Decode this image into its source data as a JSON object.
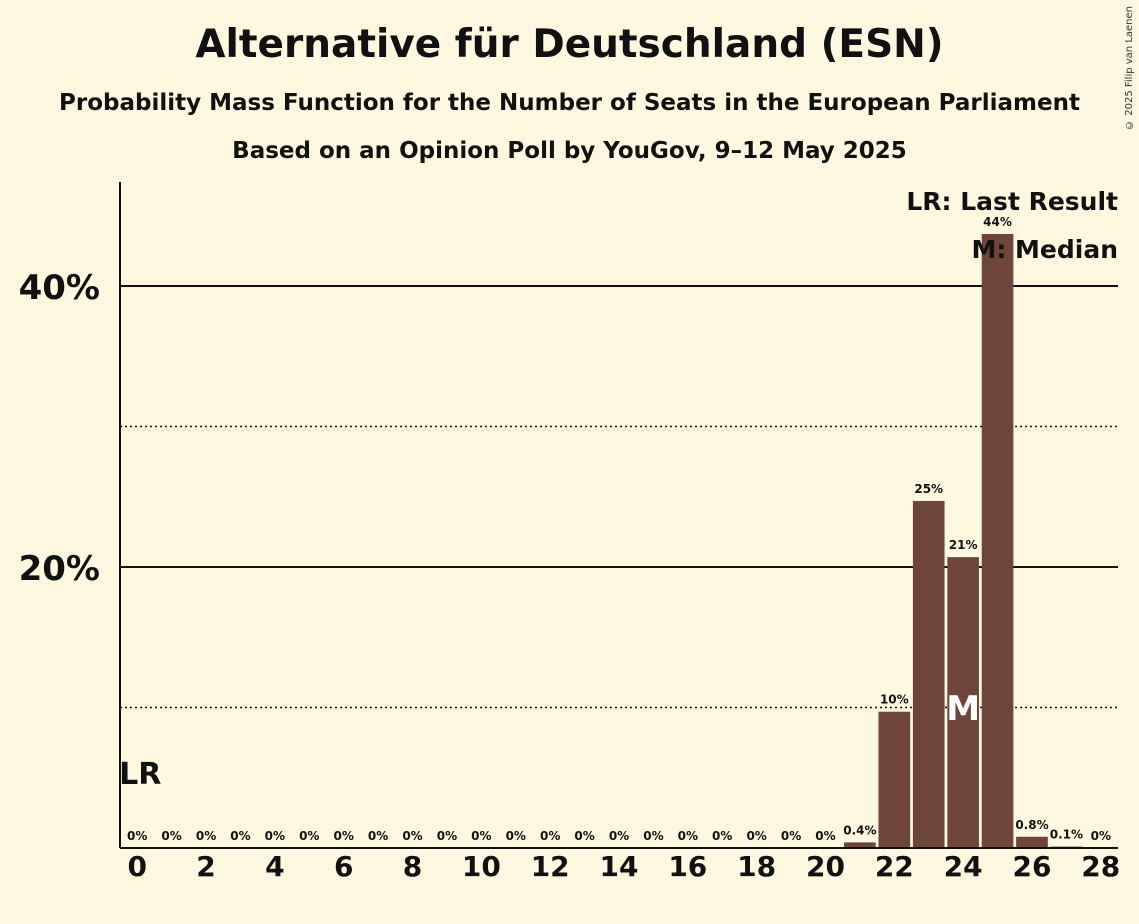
{
  "header": {
    "title": "Alternative für Deutschland (ESN)",
    "subtitle": "Probability Mass Function for the Number of Seats in the European Parliament",
    "subtitle2": "Based on an Opinion Poll by YouGov, 9–12 May 2025",
    "copyright": "© 2025 Filip van Laenen"
  },
  "chart_data": {
    "type": "bar",
    "x": [
      0,
      1,
      2,
      3,
      4,
      5,
      6,
      7,
      8,
      9,
      10,
      11,
      12,
      13,
      14,
      15,
      16,
      17,
      18,
      19,
      20,
      21,
      22,
      23,
      24,
      25,
      26,
      27,
      28
    ],
    "values": [
      0,
      0,
      0,
      0,
      0,
      0,
      0,
      0,
      0,
      0,
      0,
      0,
      0,
      0,
      0,
      0,
      0,
      0,
      0,
      0,
      0,
      0.4,
      9.7,
      24.7,
      20.7,
      43.7,
      0.8,
      0.1,
      0
    ],
    "data_labels": [
      "0%",
      "0%",
      "0%",
      "0%",
      "0%",
      "0%",
      "0%",
      "0%",
      "0%",
      "0%",
      "0%",
      "0%",
      "0%",
      "0%",
      "0%",
      "0%",
      "0%",
      "0%",
      "0%",
      "0%",
      "0%",
      "0.4%",
      "10%",
      "25%",
      "21%",
      "44%",
      "0.8%",
      "0.1%",
      "0%"
    ],
    "x_ticks": [
      0,
      2,
      4,
      6,
      8,
      10,
      12,
      14,
      16,
      18,
      20,
      22,
      24,
      26,
      28
    ],
    "y_ticks": [
      {
        "value": 20,
        "label": "20%"
      },
      {
        "value": 40,
        "label": "40%"
      }
    ],
    "y_minor_gridlines": [
      10,
      30
    ],
    "ylim": [
      0,
      47.4
    ],
    "xlim": [
      -0.5,
      28.5
    ],
    "bar_color": "#6d4539",
    "last_result": {
      "x": 0,
      "label": "LR"
    },
    "median": {
      "x": 24,
      "label": "M"
    },
    "legend": {
      "position": "top-right",
      "entries": [
        "LR: Last Result",
        "M: Median"
      ]
    }
  }
}
